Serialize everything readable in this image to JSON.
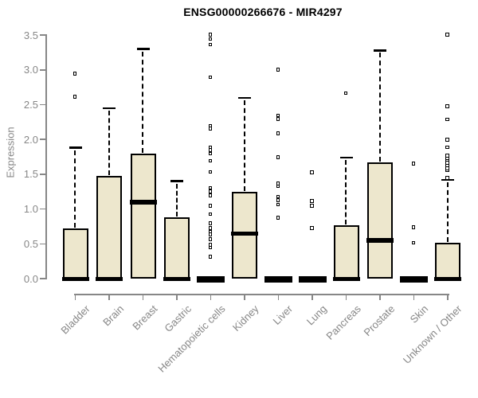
{
  "title": "ENSG00000266676 - MIR4297",
  "chart_data": {
    "type": "boxplot",
    "title": "ENSG00000266676 - MIR4297",
    "xlabel": "",
    "ylabel": "Expression",
    "ylim": [
      0.0,
      3.5
    ],
    "ytick_labels": [
      "0.0",
      "0.5",
      "1.0",
      "1.5",
      "2.0",
      "2.5",
      "3.0",
      "3.5"
    ],
    "ytick_values": [
      0.0,
      0.5,
      1.0,
      1.5,
      2.0,
      2.5,
      3.0,
      3.5
    ],
    "grid": "off",
    "legend": "none",
    "categories": [
      "Bladder",
      "Brain",
      "Breast",
      "Gastric",
      "Hematopoietic cells",
      "Kidney",
      "Liver",
      "Lung",
      "Pancreas",
      "Prostate",
      "Skin",
      "Unknown / Other"
    ],
    "boxes": [
      {
        "category": "Bladder",
        "q1": 0,
        "median": 0,
        "q3": 0.72,
        "whisker_low": 0,
        "whisker_high": 1.88,
        "outliers": [
          2.61,
          2.94
        ]
      },
      {
        "category": "Brain",
        "q1": 0,
        "median": 0,
        "q3": 1.48,
        "whisker_low": 0,
        "whisker_high": 2.45,
        "outliers": []
      },
      {
        "category": "Breast",
        "q1": 0,
        "median": 1.1,
        "q3": 1.8,
        "whisker_low": 0,
        "whisker_high": 3.3,
        "outliers": []
      },
      {
        "category": "Gastric",
        "q1": 0,
        "median": 0,
        "q3": 0.88,
        "whisker_low": 0,
        "whisker_high": 1.4,
        "outliers": []
      },
      {
        "category": "Hematopoietic cells",
        "q1": 0,
        "median": 0,
        "q3": 0,
        "whisker_low": 0,
        "whisker_high": 0,
        "outliers": [
          0.31,
          0.44,
          0.48,
          0.56,
          0.63,
          0.67,
          0.72,
          0.79,
          0.92,
          1.04,
          1.19,
          1.25,
          1.3,
          1.53,
          1.69,
          1.79,
          1.84,
          1.88,
          2.15,
          2.19,
          2.89,
          3.36,
          3.44,
          3.5
        ]
      },
      {
        "category": "Kidney",
        "q1": 0,
        "median": 0.65,
        "q3": 1.25,
        "whisker_low": 0,
        "whisker_high": 2.6,
        "outliers": []
      },
      {
        "category": "Liver",
        "q1": 0,
        "median": 0,
        "q3": 0,
        "whisker_low": 0,
        "whisker_high": 0,
        "outliers": [
          0.87,
          1.06,
          1.12,
          1.17,
          1.32,
          1.36,
          1.74,
          2.08,
          2.29,
          2.34,
          3.0
        ]
      },
      {
        "category": "Lung",
        "q1": 0,
        "median": 0,
        "q3": 0,
        "whisker_low": 0,
        "whisker_high": 0,
        "outliers": [
          0.72,
          1.04,
          1.11,
          1.52
        ]
      },
      {
        "category": "Pancreas",
        "q1": 0,
        "median": 0,
        "q3": 0.77,
        "whisker_low": 0,
        "whisker_high": 1.74,
        "outliers": [
          2.66
        ]
      },
      {
        "category": "Prostate",
        "q1": 0,
        "median": 0.55,
        "q3": 1.67,
        "whisker_low": 0,
        "whisker_high": 3.28,
        "outliers": []
      },
      {
        "category": "Skin",
        "q1": 0,
        "median": 0,
        "q3": 0,
        "whisker_low": 0,
        "whisker_high": 0,
        "outliers": [
          0.51,
          0.73,
          1.65
        ]
      },
      {
        "category": "Unknown / Other",
        "q1": 0,
        "median": 0,
        "q3": 0.52,
        "whisker_low": 0,
        "whisker_high": 1.42,
        "outliers": [
          1.44,
          1.55,
          1.58,
          1.62,
          1.66,
          1.7,
          1.73,
          1.76,
          1.88,
          1.99,
          2.28,
          2.47,
          3.5
        ]
      }
    ],
    "colors": {
      "box_fill": "#ede7cd",
      "box_border": "#000000",
      "median": "#000000",
      "whisker": "#000000",
      "outlier_fill": "#ffffff",
      "axis": "#878787",
      "axis_text": "#878787",
      "title_text": "#000000",
      "background": "#ffffff"
    }
  }
}
